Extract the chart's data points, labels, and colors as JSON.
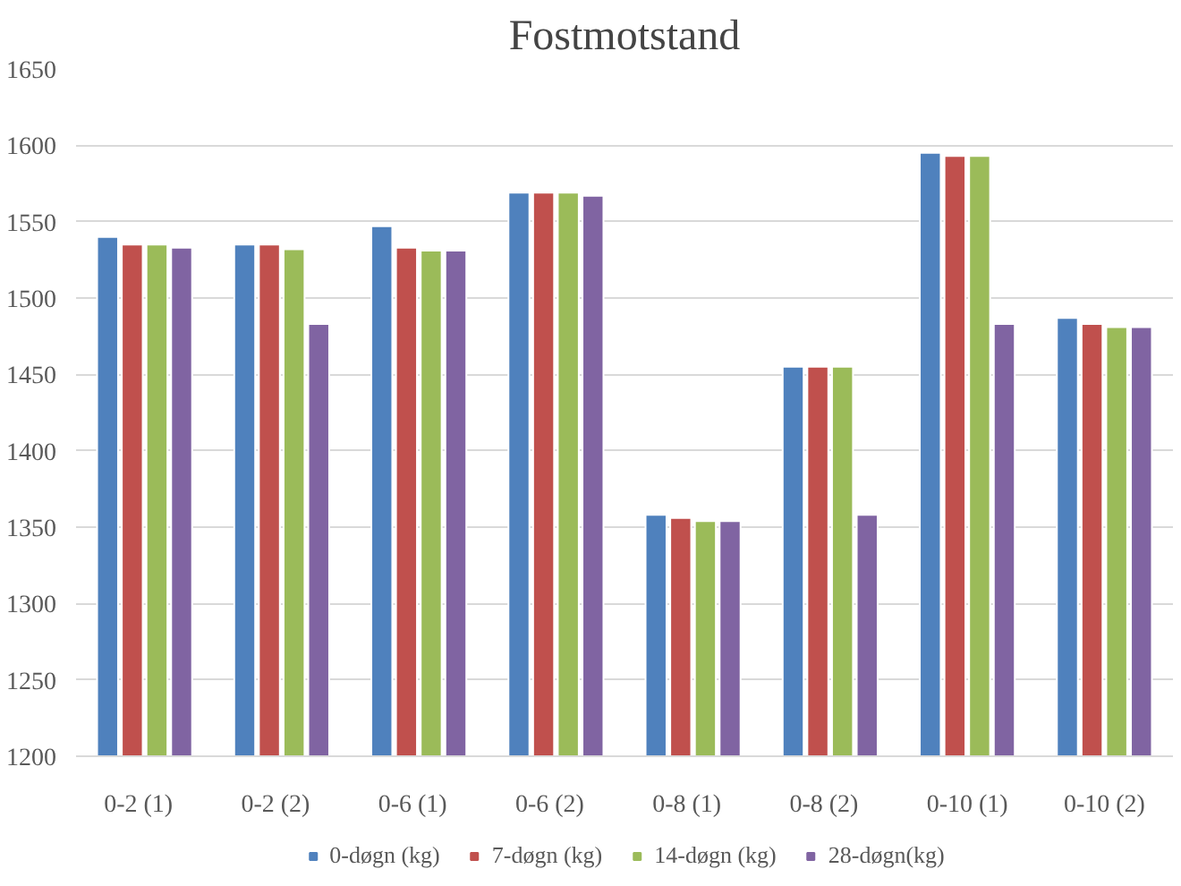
{
  "chart_data": {
    "type": "bar",
    "title": "Fostmotstand",
    "categories": [
      "0-2   (1)",
      "0-2   (2)",
      "0-6   (1)",
      "0-6   (2)",
      "0-8   (1)",
      "0-8   (2)",
      "0-10 (1)",
      "0-10 (2)"
    ],
    "series": [
      {
        "name": "0-døgn (kg)",
        "color": "#4f81bd",
        "values": [
          1540,
          1535,
          1547,
          1569,
          1358,
          1455,
          1595,
          1487
        ]
      },
      {
        "name": "7-døgn (kg)",
        "color": "#c0504d",
        "values": [
          1535,
          1535,
          1533,
          1569,
          1356,
          1455,
          1593,
          1483
        ]
      },
      {
        "name": "14-døgn (kg)",
        "color": "#9bbb59",
        "values": [
          1535,
          1532,
          1531,
          1569,
          1354,
          1455,
          1593,
          1481
        ]
      },
      {
        "name": "28-døgn(kg)",
        "color": "#8064a2",
        "values": [
          1533,
          1483,
          1531,
          1567,
          1354,
          1358,
          1483,
          1481
        ]
      }
    ],
    "ylim": [
      1200,
      1650
    ],
    "yticks": [
      1200,
      1250,
      1300,
      1350,
      1400,
      1450,
      1500,
      1550,
      1600,
      1650
    ],
    "grid": "y",
    "legend": "bottom"
  }
}
